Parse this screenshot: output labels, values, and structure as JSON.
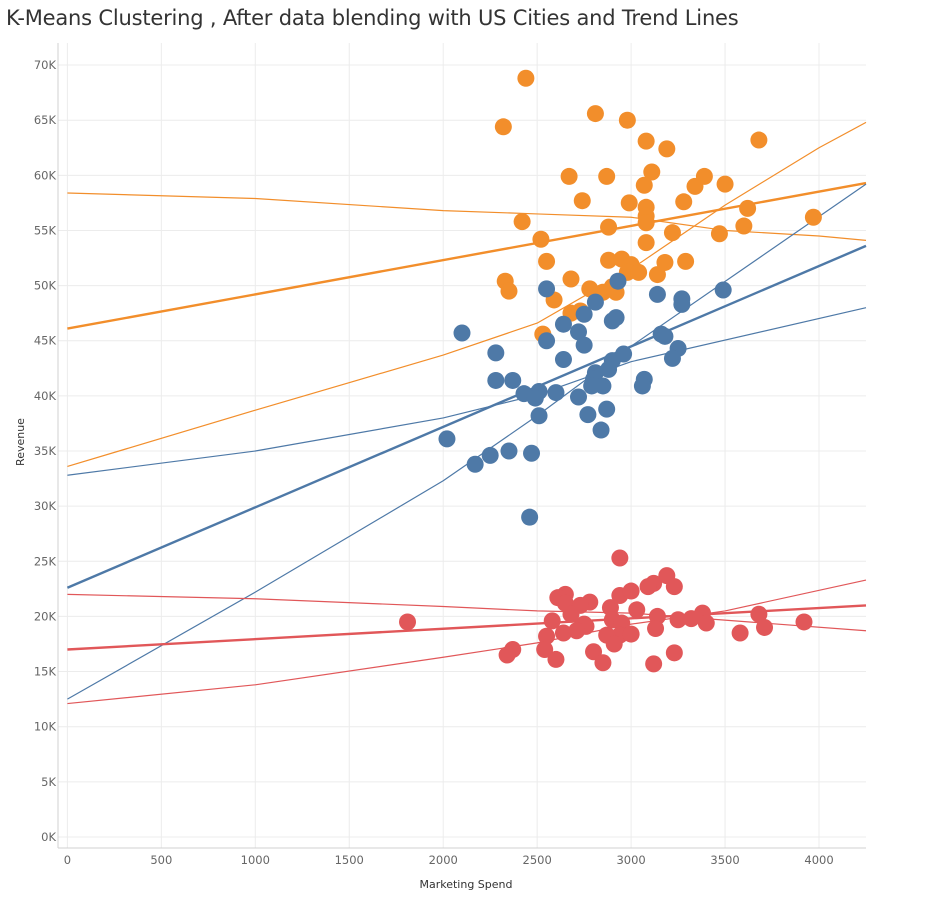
{
  "chart_data": {
    "type": "scatter",
    "title": "K-Means Clustering , After data blending with US Cities and Trend Lines",
    "xlabel": "Marketing Spend",
    "ylabel": "Revenue",
    "xlim": [
      -50,
      4250
    ],
    "ylim": [
      -1000,
      72000
    ],
    "x_ticks": [
      0,
      500,
      1000,
      1500,
      2000,
      2500,
      3000,
      3500,
      4000
    ],
    "x_tick_labels": [
      "0",
      "500",
      "1000",
      "1500",
      "2000",
      "2500",
      "3000",
      "3500",
      "4000"
    ],
    "y_ticks": [
      0,
      5000,
      10000,
      15000,
      20000,
      25000,
      30000,
      35000,
      40000,
      45000,
      50000,
      55000,
      60000,
      65000,
      70000
    ],
    "y_tick_labels": [
      "0K",
      "5K",
      "10K",
      "15K",
      "20K",
      "25K",
      "30K",
      "35K",
      "40K",
      "45K",
      "50K",
      "55K",
      "60K",
      "65K",
      "70K"
    ],
    "grid": true,
    "legend": "none",
    "colors": {
      "orange": "#f28e2b",
      "blue": "#4e79a7",
      "red": "#e15759"
    },
    "series": [
      {
        "color": "#f28e2b",
        "points": [
          [
            2440,
            68800
          ],
          [
            2320,
            64400
          ],
          [
            2810,
            65600
          ],
          [
            2980,
            65000
          ],
          [
            3080,
            63100
          ],
          [
            3190,
            62400
          ],
          [
            3680,
            63200
          ],
          [
            2670,
            59900
          ],
          [
            2870,
            59900
          ],
          [
            3110,
            60300
          ],
          [
            3070,
            59100
          ],
          [
            3340,
            59000
          ],
          [
            3390,
            59900
          ],
          [
            3500,
            59200
          ],
          [
            2740,
            57700
          ],
          [
            2990,
            57500
          ],
          [
            3080,
            57100
          ],
          [
            3280,
            57600
          ],
          [
            3080,
            56300
          ],
          [
            3080,
            55700
          ],
          [
            3620,
            57000
          ],
          [
            3970,
            56200
          ],
          [
            2420,
            55800
          ],
          [
            2880,
            55300
          ],
          [
            3600,
            55400
          ],
          [
            3220,
            54800
          ],
          [
            3470,
            54700
          ],
          [
            2520,
            54200
          ],
          [
            3080,
            53900
          ],
          [
            2550,
            52200
          ],
          [
            2880,
            52300
          ],
          [
            2950,
            52400
          ],
          [
            3000,
            51900
          ],
          [
            3180,
            52100
          ],
          [
            3290,
            52200
          ],
          [
            2980,
            51200
          ],
          [
            3040,
            51200
          ],
          [
            3140,
            51000
          ],
          [
            2330,
            50400
          ],
          [
            2680,
            50600
          ],
          [
            2350,
            49500
          ],
          [
            2780,
            49700
          ],
          [
            2850,
            49400
          ],
          [
            2920,
            49400
          ],
          [
            2900,
            49900
          ],
          [
            2590,
            48700
          ],
          [
            2680,
            47500
          ],
          [
            2730,
            47700
          ],
          [
            2530,
            45600
          ]
        ]
      },
      {
        "color": "#4e79a7",
        "points": [
          [
            2550,
            49700
          ],
          [
            2930,
            50400
          ],
          [
            2810,
            48500
          ],
          [
            3140,
            49200
          ],
          [
            3270,
            48800
          ],
          [
            3270,
            48300
          ],
          [
            3490,
            49600
          ],
          [
            2750,
            47400
          ],
          [
            2900,
            46800
          ],
          [
            2920,
            47100
          ],
          [
            2640,
            46500
          ],
          [
            2720,
            45800
          ],
          [
            2100,
            45700
          ],
          [
            2550,
            45000
          ],
          [
            3160,
            45600
          ],
          [
            3180,
            45400
          ],
          [
            2750,
            44600
          ],
          [
            2280,
            43900
          ],
          [
            2960,
            43800
          ],
          [
            3250,
            44300
          ],
          [
            3220,
            43400
          ],
          [
            2640,
            43300
          ],
          [
            2900,
            43200
          ],
          [
            2880,
            42400
          ],
          [
            2810,
            42100
          ],
          [
            2800,
            41500
          ],
          [
            2280,
            41400
          ],
          [
            2370,
            41400
          ],
          [
            3070,
            41500
          ],
          [
            2850,
            40900
          ],
          [
            2790,
            40900
          ],
          [
            3060,
            40900
          ],
          [
            2430,
            40200
          ],
          [
            2510,
            40400
          ],
          [
            2600,
            40300
          ],
          [
            2490,
            39800
          ],
          [
            2720,
            39900
          ],
          [
            2870,
            38800
          ],
          [
            2770,
            38300
          ],
          [
            2510,
            38200
          ],
          [
            2840,
            36900
          ],
          [
            2020,
            36100
          ],
          [
            2350,
            35000
          ],
          [
            2250,
            34600
          ],
          [
            2170,
            33800
          ],
          [
            2470,
            34800
          ],
          [
            2460,
            29000
          ]
        ]
      },
      {
        "color": "#e15759",
        "points": [
          [
            2940,
            25300
          ],
          [
            3190,
            23700
          ],
          [
            3120,
            23000
          ],
          [
            3090,
            22700
          ],
          [
            3230,
            22700
          ],
          [
            2650,
            22000
          ],
          [
            2610,
            21700
          ],
          [
            2940,
            21900
          ],
          [
            3000,
            22300
          ],
          [
            2780,
            21300
          ],
          [
            2650,
            21200
          ],
          [
            2890,
            20800
          ],
          [
            3030,
            20600
          ],
          [
            2730,
            21000
          ],
          [
            3380,
            20300
          ],
          [
            3680,
            20200
          ],
          [
            3140,
            20000
          ],
          [
            2680,
            20200
          ],
          [
            1810,
            19500
          ],
          [
            2580,
            19600
          ],
          [
            2750,
            19300
          ],
          [
            2900,
            19700
          ],
          [
            2950,
            19400
          ],
          [
            3250,
            19700
          ],
          [
            3320,
            19800
          ],
          [
            3400,
            19400
          ],
          [
            3920,
            19500
          ],
          [
            2760,
            19100
          ],
          [
            2710,
            18700
          ],
          [
            2640,
            18500
          ],
          [
            2550,
            18200
          ],
          [
            2940,
            18300
          ],
          [
            3000,
            18400
          ],
          [
            3130,
            18900
          ],
          [
            2870,
            18300
          ],
          [
            3580,
            18500
          ],
          [
            3710,
            19000
          ],
          [
            2910,
            17500
          ],
          [
            2540,
            17000
          ],
          [
            2370,
            17000
          ],
          [
            2340,
            16500
          ],
          [
            2800,
            16800
          ],
          [
            3230,
            16700
          ],
          [
            2600,
            16100
          ],
          [
            2850,
            15800
          ],
          [
            3120,
            15700
          ]
        ]
      }
    ],
    "trend_lines": [
      {
        "color": "#f28e2b",
        "role": "fit",
        "points": [
          [
            0,
            46100
          ],
          [
            4250,
            59300
          ]
        ]
      },
      {
        "color": "#f28e2b",
        "role": "upper",
        "points": [
          [
            0,
            33600
          ],
          [
            1000,
            38700
          ],
          [
            2000,
            43700
          ],
          [
            2500,
            46600
          ],
          [
            3000,
            51500
          ],
          [
            3500,
            57300
          ],
          [
            4000,
            62500
          ],
          [
            4250,
            64800
          ]
        ]
      },
      {
        "color": "#f28e2b",
        "role": "lower",
        "points": [
          [
            0,
            58400
          ],
          [
            1000,
            57900
          ],
          [
            2000,
            56800
          ],
          [
            2500,
            56500
          ],
          [
            3000,
            56200
          ],
          [
            3500,
            55000
          ],
          [
            4000,
            54500
          ],
          [
            4250,
            54100
          ]
        ]
      },
      {
        "color": "#4e79a7",
        "role": "fit",
        "points": [
          [
            0,
            22600
          ],
          [
            4250,
            53600
          ]
        ]
      },
      {
        "color": "#4e79a7",
        "role": "upper",
        "points": [
          [
            0,
            32800
          ],
          [
            1000,
            35000
          ],
          [
            2000,
            38000
          ],
          [
            2500,
            40100
          ],
          [
            3000,
            43100
          ],
          [
            4250,
            48000
          ]
        ]
      },
      {
        "color": "#4e79a7",
        "role": "lower",
        "points": [
          [
            0,
            12500
          ],
          [
            1000,
            22200
          ],
          [
            2000,
            32300
          ],
          [
            2500,
            38200
          ],
          [
            3000,
            44500
          ],
          [
            4250,
            59200
          ]
        ]
      },
      {
        "color": "#e15759",
        "role": "fit",
        "points": [
          [
            0,
            17000
          ],
          [
            4250,
            21000
          ]
        ]
      },
      {
        "color": "#e15759",
        "role": "upper",
        "points": [
          [
            0,
            22000
          ],
          [
            1000,
            21600
          ],
          [
            2000,
            20900
          ],
          [
            2500,
            20500
          ],
          [
            3000,
            20300
          ],
          [
            4250,
            18700
          ]
        ]
      },
      {
        "color": "#e15759",
        "role": "lower",
        "points": [
          [
            0,
            12100
          ],
          [
            1000,
            13800
          ],
          [
            2000,
            16300
          ],
          [
            2500,
            17600
          ],
          [
            3000,
            19300
          ],
          [
            3500,
            20500
          ],
          [
            4250,
            23300
          ]
        ]
      }
    ]
  }
}
